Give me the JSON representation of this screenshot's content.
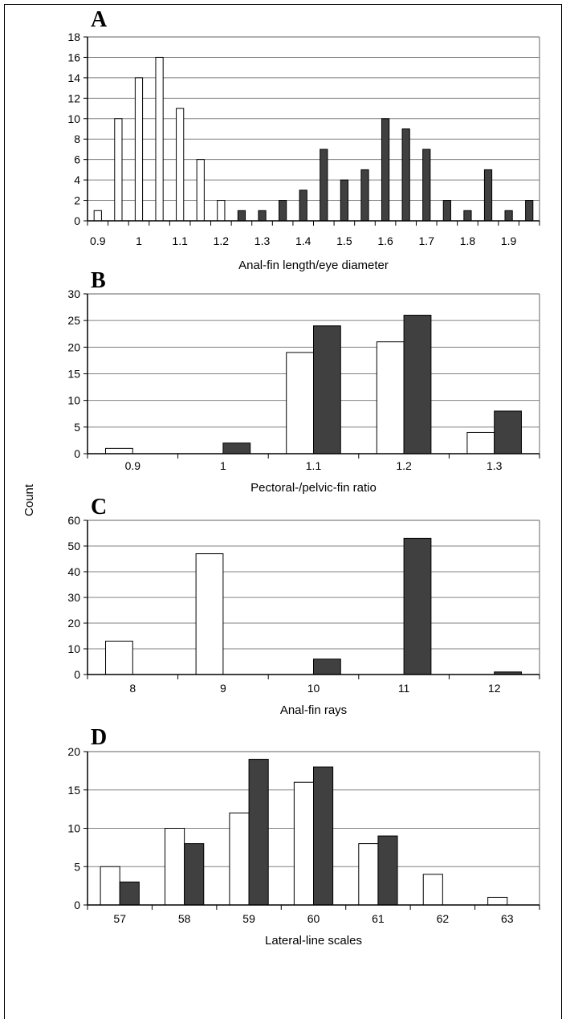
{
  "shared_ylabel": "Count",
  "colors": {
    "group1": "#ffffff",
    "group2": "#404040",
    "grid": "#808080",
    "axis": "#000000"
  },
  "chart_data": [
    {
      "panel": "A",
      "type": "bar",
      "xlabel": "Anal-fin length/eye diameter",
      "ylim": [
        0,
        18
      ],
      "yticks": [
        0,
        2,
        4,
        6,
        8,
        10,
        12,
        14,
        16,
        18
      ],
      "xlim": [
        0.875,
        1.975
      ],
      "xticks": [
        "0.9",
        "1",
        "1.1",
        "1.2",
        "1.3",
        "1.4",
        "1.5",
        "1.6",
        "1.7",
        "1.8",
        "1.9"
      ],
      "grid": true,
      "series": [
        {
          "x": [
            0.9,
            0.95,
            1.0,
            1.05,
            1.1,
            1.15,
            1.2
          ],
          "values": [
            1,
            10,
            14,
            16,
            11,
            6,
            2
          ],
          "fill": "white"
        },
        {
          "x": [
            1.25,
            1.3,
            1.35,
            1.4,
            1.45,
            1.5,
            1.55,
            1.6,
            1.65,
            1.7,
            1.75,
            1.8,
            1.85,
            1.9,
            1.95
          ],
          "values": [
            1,
            1,
            2,
            3,
            7,
            4,
            5,
            10,
            9,
            7,
            2,
            1,
            5,
            1,
            2
          ],
          "fill": "dark"
        }
      ]
    },
    {
      "panel": "B",
      "type": "bar",
      "xlabel": "Pectoral-/pelvic-fin ratio",
      "ylim": [
        0,
        30
      ],
      "yticks": [
        0,
        5,
        10,
        15,
        20,
        25,
        30
      ],
      "categories": [
        "0.9",
        "1",
        "1.1",
        "1.2",
        "1.3"
      ],
      "grid": true,
      "series": [
        {
          "values": [
            1,
            0,
            19,
            21,
            4
          ],
          "fill": "white"
        },
        {
          "values": [
            0,
            2,
            24,
            26,
            8
          ],
          "fill": "dark"
        }
      ]
    },
    {
      "panel": "C",
      "type": "bar",
      "xlabel": "Anal-fin rays",
      "ylim": [
        0,
        60
      ],
      "yticks": [
        0,
        10,
        20,
        30,
        40,
        50,
        60
      ],
      "categories": [
        "8",
        "9",
        "10",
        "11",
        "12"
      ],
      "grid": true,
      "series": [
        {
          "values": [
            13,
            47,
            0,
            0,
            0
          ],
          "fill": "white"
        },
        {
          "values": [
            0,
            0,
            6,
            53,
            1
          ],
          "fill": "dark"
        }
      ]
    },
    {
      "panel": "D",
      "type": "bar",
      "xlabel": "Lateral-line scales",
      "ylim": [
        0,
        20
      ],
      "yticks": [
        0,
        5,
        10,
        15,
        20
      ],
      "categories": [
        "57",
        "58",
        "59",
        "60",
        "61",
        "62",
        "63"
      ],
      "grid": true,
      "series": [
        {
          "values": [
            5,
            10,
            12,
            16,
            8,
            4,
            1
          ],
          "fill": "white"
        },
        {
          "values": [
            3,
            8,
            19,
            18,
            9,
            0,
            0
          ],
          "fill": "dark"
        }
      ]
    }
  ]
}
